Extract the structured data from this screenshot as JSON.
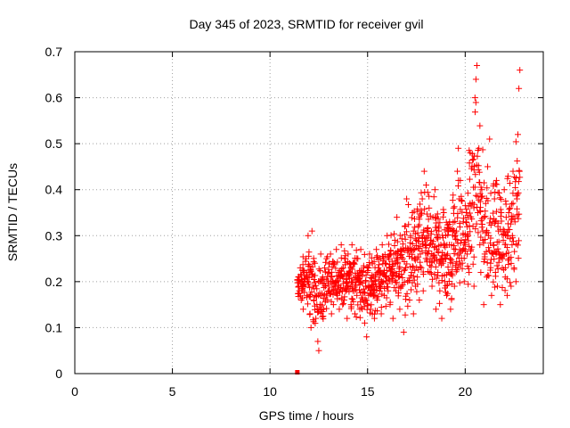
{
  "chart_data": {
    "type": "scatter",
    "title": "Day 345 of 2023, SRMTID for receiver gvil",
    "xlabel": "GPS time / hours",
    "ylabel": "SRMTID / TECUs",
    "xlim": [
      0,
      24
    ],
    "ylim": [
      0,
      0.7
    ],
    "xticks": [
      0,
      5,
      10,
      15,
      20
    ],
    "yticks": [
      0,
      0.1,
      0.2,
      0.3,
      0.4,
      0.5,
      0.6,
      0.7
    ],
    "ytick_labels": [
      "0",
      "0.1",
      "0.2",
      "0.3",
      "0.4",
      "0.5",
      "0.6",
      "0.7"
    ],
    "grid": true,
    "marker": "+",
    "series_color": "#ff0000",
    "zero_marker": {
      "x": 11.4,
      "y": 0
    },
    "envelope": {
      "x": [
        11.4,
        12.0,
        12.5,
        13.0,
        13.5,
        14.0,
        14.5,
        15.0,
        15.5,
        16.0,
        16.5,
        17.0,
        17.5,
        18.0,
        18.5,
        19.0,
        19.5,
        20.0,
        20.5,
        21.0,
        21.5,
        22.0,
        22.5,
        22.8
      ],
      "low": [
        0.14,
        0.1,
        0.06,
        0.12,
        0.13,
        0.12,
        0.11,
        0.09,
        0.11,
        0.12,
        0.11,
        0.1,
        0.12,
        0.14,
        0.12,
        0.11,
        0.12,
        0.14,
        0.15,
        0.14,
        0.15,
        0.12,
        0.14,
        0.16
      ],
      "high": [
        0.24,
        0.31,
        0.26,
        0.26,
        0.28,
        0.28,
        0.29,
        0.27,
        0.3,
        0.31,
        0.35,
        0.38,
        0.42,
        0.44,
        0.42,
        0.4,
        0.49,
        0.45,
        0.65,
        0.5,
        0.45,
        0.44,
        0.55,
        0.66
      ]
    },
    "points": [
      [
        11.45,
        0.21
      ],
      [
        11.5,
        0.18
      ],
      [
        11.55,
        0.23
      ],
      [
        11.6,
        0.16
      ],
      [
        11.65,
        0.2
      ],
      [
        11.7,
        0.14
      ],
      [
        11.75,
        0.22
      ],
      [
        11.8,
        0.19
      ],
      [
        11.85,
        0.25
      ],
      [
        11.9,
        0.17
      ],
      [
        11.95,
        0.3
      ],
      [
        12.0,
        0.22
      ],
      [
        12.05,
        0.13
      ],
      [
        12.1,
        0.1
      ],
      [
        12.15,
        0.31
      ],
      [
        12.2,
        0.19
      ],
      [
        12.25,
        0.16
      ],
      [
        12.3,
        0.24
      ],
      [
        12.35,
        0.12
      ],
      [
        12.4,
        0.15
      ],
      [
        12.45,
        0.07
      ],
      [
        12.5,
        0.05
      ],
      [
        12.55,
        0.2
      ],
      [
        12.6,
        0.26
      ],
      [
        12.65,
        0.17
      ],
      [
        12.7,
        0.21
      ],
      [
        12.75,
        0.14
      ],
      [
        12.8,
        0.23
      ],
      [
        12.85,
        0.19
      ],
      [
        12.9,
        0.25
      ],
      [
        12.95,
        0.16
      ],
      [
        13.0,
        0.22
      ],
      [
        13.05,
        0.18
      ],
      [
        13.1,
        0.26
      ],
      [
        13.15,
        0.13
      ],
      [
        13.2,
        0.2
      ],
      [
        13.25,
        0.15
      ],
      [
        13.3,
        0.24
      ],
      [
        13.35,
        0.19
      ],
      [
        13.4,
        0.27
      ],
      [
        13.45,
        0.17
      ],
      [
        13.5,
        0.22
      ],
      [
        13.55,
        0.14
      ],
      [
        13.6,
        0.21
      ],
      [
        13.65,
        0.28
      ],
      [
        13.7,
        0.18
      ],
      [
        13.75,
        0.23
      ],
      [
        13.8,
        0.16
      ],
      [
        13.85,
        0.25
      ],
      [
        13.9,
        0.2
      ],
      [
        13.95,
        0.12
      ],
      [
        14.0,
        0.26
      ],
      [
        14.05,
        0.19
      ],
      [
        14.1,
        0.22
      ],
      [
        14.15,
        0.15
      ],
      [
        14.2,
        0.28
      ],
      [
        14.25,
        0.18
      ],
      [
        14.3,
        0.24
      ],
      [
        14.35,
        0.13
      ],
      [
        14.4,
        0.21
      ],
      [
        14.45,
        0.17
      ],
      [
        14.5,
        0.25
      ],
      [
        14.55,
        0.2
      ],
      [
        14.6,
        0.14
      ],
      [
        14.65,
        0.27
      ],
      [
        14.7,
        0.22
      ],
      [
        14.75,
        0.16
      ],
      [
        14.8,
        0.23
      ],
      [
        14.85,
        0.11
      ],
      [
        14.9,
        0.19
      ],
      [
        14.95,
        0.08
      ],
      [
        15.0,
        0.22
      ],
      [
        15.05,
        0.17
      ],
      [
        15.1,
        0.26
      ],
      [
        15.15,
        0.14
      ],
      [
        15.2,
        0.2
      ],
      [
        15.25,
        0.24
      ],
      [
        15.3,
        0.18
      ],
      [
        15.35,
        0.12
      ],
      [
        15.4,
        0.21
      ],
      [
        15.45,
        0.27
      ],
      [
        15.5,
        0.16
      ],
      [
        15.55,
        0.23
      ],
      [
        15.6,
        0.19
      ],
      [
        15.65,
        0.25
      ],
      [
        15.7,
        0.13
      ],
      [
        15.75,
        0.28
      ],
      [
        15.8,
        0.2
      ],
      [
        15.85,
        0.17
      ],
      [
        15.9,
        0.24
      ],
      [
        15.95,
        0.21
      ],
      [
        16.0,
        0.3
      ],
      [
        16.05,
        0.18
      ],
      [
        16.1,
        0.23
      ],
      [
        16.15,
        0.15
      ],
      [
        16.2,
        0.26
      ],
      [
        16.25,
        0.2
      ],
      [
        16.3,
        0.12
      ],
      [
        16.35,
        0.22
      ],
      [
        16.4,
        0.29
      ],
      [
        16.45,
        0.18
      ],
      [
        16.5,
        0.34
      ],
      [
        16.55,
        0.24
      ],
      [
        16.6,
        0.21
      ],
      [
        16.65,
        0.14
      ],
      [
        16.7,
        0.27
      ],
      [
        16.75,
        0.19
      ],
      [
        16.8,
        0.25
      ],
      [
        16.85,
        0.09
      ],
      [
        16.9,
        0.32
      ],
      [
        16.95,
        0.23
      ],
      [
        17.0,
        0.38
      ],
      [
        17.05,
        0.2
      ],
      [
        17.1,
        0.27
      ],
      [
        17.15,
        0.16
      ],
      [
        17.2,
        0.3
      ],
      [
        17.25,
        0.22
      ],
      [
        17.3,
        0.35
      ],
      [
        17.35,
        0.13
      ],
      [
        17.4,
        0.25
      ],
      [
        17.45,
        0.19
      ],
      [
        17.5,
        0.29
      ],
      [
        17.55,
        0.21
      ],
      [
        17.6,
        0.32
      ],
      [
        17.65,
        0.16
      ],
      [
        17.7,
        0.26
      ],
      [
        17.75,
        0.23
      ],
      [
        17.8,
        0.38
      ],
      [
        17.85,
        0.18
      ],
      [
        17.9,
        0.44
      ],
      [
        17.95,
        0.28
      ],
      [
        18.0,
        0.41
      ],
      [
        18.05,
        0.31
      ],
      [
        18.1,
        0.26
      ],
      [
        18.15,
        0.36
      ],
      [
        18.2,
        0.22
      ],
      [
        18.25,
        0.29
      ],
      [
        18.3,
        0.19
      ],
      [
        18.35,
        0.34
      ],
      [
        18.4,
        0.25
      ],
      [
        18.45,
        0.4
      ],
      [
        18.5,
        0.14
      ],
      [
        18.55,
        0.27
      ],
      [
        18.6,
        0.22
      ],
      [
        18.65,
        0.31
      ],
      [
        18.7,
        0.18
      ],
      [
        18.75,
        0.28
      ],
      [
        18.8,
        0.12
      ],
      [
        18.85,
        0.24
      ],
      [
        18.9,
        0.35
      ],
      [
        18.95,
        0.2
      ],
      [
        19.0,
        0.3
      ],
      [
        19.05,
        0.17
      ],
      [
        19.1,
        0.26
      ],
      [
        19.15,
        0.22
      ],
      [
        19.2,
        0.33
      ],
      [
        19.25,
        0.14
      ],
      [
        19.3,
        0.28
      ],
      [
        19.35,
        0.24
      ],
      [
        19.4,
        0.36
      ],
      [
        19.45,
        0.19
      ],
      [
        19.5,
        0.27
      ],
      [
        19.55,
        0.31
      ],
      [
        19.6,
        0.44
      ],
      [
        19.65,
        0.49
      ],
      [
        19.7,
        0.38
      ],
      [
        19.75,
        0.42
      ],
      [
        19.8,
        0.29
      ],
      [
        19.85,
        0.24
      ],
      [
        19.9,
        0.33
      ],
      [
        19.95,
        0.2
      ],
      [
        20.0,
        0.28
      ],
      [
        20.05,
        0.35
      ],
      [
        20.1,
        0.26
      ],
      [
        20.15,
        0.3
      ],
      [
        20.2,
        0.22
      ],
      [
        20.25,
        0.37
      ],
      [
        20.3,
        0.27
      ],
      [
        20.35,
        0.45
      ],
      [
        20.4,
        0.32
      ],
      [
        20.45,
        0.19
      ],
      [
        20.5,
        0.6
      ],
      [
        20.55,
        0.64
      ],
      [
        20.6,
        0.67
      ],
      [
        20.65,
        0.35
      ],
      [
        20.7,
        0.49
      ],
      [
        20.75,
        0.28
      ],
      [
        20.8,
        0.22
      ],
      [
        20.85,
        0.4
      ],
      [
        20.9,
        0.31
      ],
      [
        20.95,
        0.15
      ],
      [
        21.0,
        0.26
      ],
      [
        21.05,
        0.37
      ],
      [
        21.1,
        0.21
      ],
      [
        21.15,
        0.45
      ],
      [
        21.2,
        0.3
      ],
      [
        21.25,
        0.51
      ],
      [
        21.3,
        0.24
      ],
      [
        21.35,
        0.17
      ],
      [
        21.4,
        0.33
      ],
      [
        21.45,
        0.28
      ],
      [
        21.5,
        0.38
      ],
      [
        21.55,
        0.22
      ],
      [
        21.6,
        0.42
      ],
      [
        21.65,
        0.19
      ],
      [
        21.7,
        0.31
      ],
      [
        21.75,
        0.26
      ],
      [
        21.8,
        0.15
      ],
      [
        21.85,
        0.35
      ],
      [
        21.9,
        0.23
      ],
      [
        21.95,
        0.29
      ],
      [
        22.0,
        0.4
      ],
      [
        22.05,
        0.21
      ],
      [
        22.1,
        0.34
      ],
      [
        22.15,
        0.17
      ],
      [
        22.2,
        0.3
      ],
      [
        22.25,
        0.25
      ],
      [
        22.3,
        0.36
      ],
      [
        22.35,
        0.19
      ],
      [
        22.4,
        0.28
      ],
      [
        22.45,
        0.44
      ],
      [
        22.5,
        0.23
      ],
      [
        22.55,
        0.33
      ],
      [
        22.6,
        0.2
      ],
      [
        22.65,
        0.38
      ],
      [
        22.7,
        0.52
      ],
      [
        22.75,
        0.62
      ],
      [
        22.8,
        0.66
      ]
    ]
  }
}
